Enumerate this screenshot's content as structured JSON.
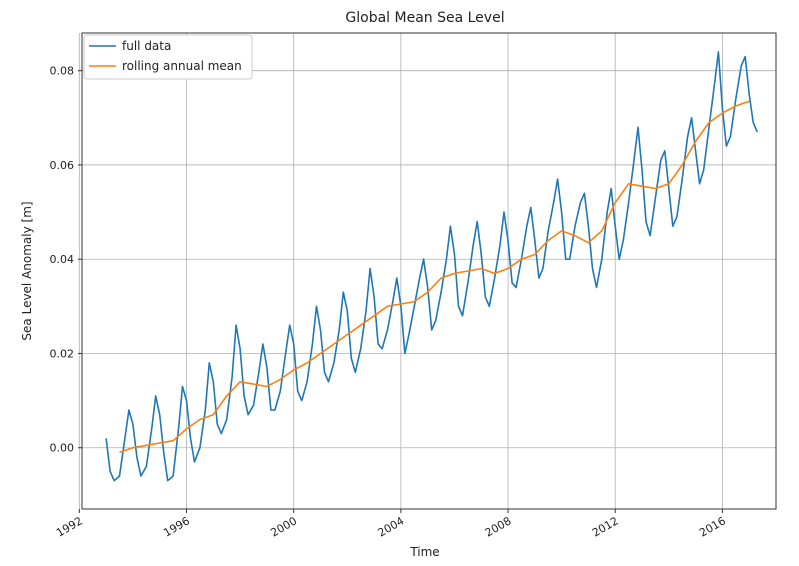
{
  "chart_data": {
    "type": "line",
    "title": "Global Mean Sea Level",
    "xlabel": "Time",
    "ylabel": "Sea Level Anomaly [m]",
    "xlim": [
      1992.1,
      2018.0
    ],
    "ylim": [
      -0.013,
      0.088
    ],
    "grid": true,
    "legend_position": "top-left",
    "x_ticks": [
      1992,
      1996,
      2000,
      2004,
      2008,
      2012,
      2016
    ],
    "x_tick_labels": [
      "1992",
      "1996",
      "2000",
      "2004",
      "2008",
      "2012",
      "2016"
    ],
    "y_ticks": [
      0.0,
      0.02,
      0.04,
      0.06,
      0.08
    ],
    "y_tick_labels": [
      "0.00",
      "0.02",
      "0.04",
      "0.06",
      "0.08"
    ],
    "series": [
      {
        "name": "full data",
        "color": "#1f77b4",
        "x": [
          1993.0,
          1993.15,
          1993.3,
          1993.5,
          1993.7,
          1993.85,
          1994.0,
          1994.15,
          1994.3,
          1994.5,
          1994.7,
          1994.85,
          1995.0,
          1995.15,
          1995.3,
          1995.5,
          1995.7,
          1995.85,
          1996.0,
          1996.15,
          1996.3,
          1996.5,
          1996.7,
          1996.85,
          1997.0,
          1997.15,
          1997.3,
          1997.5,
          1997.7,
          1997.85,
          1998.0,
          1998.15,
          1998.3,
          1998.5,
          1998.7,
          1998.85,
          1999.0,
          1999.15,
          1999.3,
          1999.5,
          1999.7,
          1999.85,
          2000.0,
          2000.15,
          2000.3,
          2000.5,
          2000.7,
          2000.85,
          2001.0,
          2001.15,
          2001.3,
          2001.5,
          2001.7,
          2001.85,
          2002.0,
          2002.15,
          2002.3,
          2002.5,
          2002.7,
          2002.85,
          2003.0,
          2003.15,
          2003.3,
          2003.5,
          2003.7,
          2003.85,
          2004.0,
          2004.15,
          2004.3,
          2004.5,
          2004.7,
          2004.85,
          2005.0,
          2005.15,
          2005.3,
          2005.5,
          2005.7,
          2005.85,
          2006.0,
          2006.15,
          2006.3,
          2006.5,
          2006.7,
          2006.85,
          2007.0,
          2007.15,
          2007.3,
          2007.5,
          2007.7,
          2007.85,
          2008.0,
          2008.15,
          2008.3,
          2008.5,
          2008.7,
          2008.85,
          2009.0,
          2009.15,
          2009.3,
          2009.5,
          2009.7,
          2009.85,
          2010.0,
          2010.15,
          2010.3,
          2010.5,
          2010.7,
          2010.85,
          2011.0,
          2011.15,
          2011.3,
          2011.5,
          2011.7,
          2011.85,
          2012.0,
          2012.15,
          2012.3,
          2012.5,
          2012.7,
          2012.85,
          2013.0,
          2013.15,
          2013.3,
          2013.5,
          2013.7,
          2013.85,
          2014.0,
          2014.15,
          2014.3,
          2014.5,
          2014.7,
          2014.85,
          2015.0,
          2015.15,
          2015.3,
          2015.5,
          2015.7,
          2015.85,
          2016.0,
          2016.15,
          2016.3,
          2016.5,
          2016.7,
          2016.85,
          2017.0,
          2017.15,
          2017.3
        ],
        "values": [
          0.002,
          -0.005,
          -0.007,
          -0.006,
          0.002,
          0.008,
          0.005,
          -0.002,
          -0.006,
          -0.004,
          0.004,
          0.011,
          0.007,
          -0.001,
          -0.007,
          -0.006,
          0.004,
          0.013,
          0.01,
          0.002,
          -0.003,
          0.0,
          0.008,
          0.018,
          0.014,
          0.005,
          0.003,
          0.006,
          0.015,
          0.026,
          0.021,
          0.011,
          0.007,
          0.009,
          0.016,
          0.022,
          0.017,
          0.008,
          0.008,
          0.012,
          0.02,
          0.026,
          0.022,
          0.012,
          0.01,
          0.014,
          0.022,
          0.03,
          0.025,
          0.016,
          0.014,
          0.018,
          0.025,
          0.033,
          0.029,
          0.019,
          0.016,
          0.021,
          0.029,
          0.038,
          0.032,
          0.022,
          0.021,
          0.025,
          0.031,
          0.036,
          0.03,
          0.02,
          0.024,
          0.03,
          0.036,
          0.04,
          0.034,
          0.025,
          0.027,
          0.033,
          0.04,
          0.047,
          0.041,
          0.03,
          0.028,
          0.035,
          0.043,
          0.048,
          0.041,
          0.032,
          0.03,
          0.036,
          0.043,
          0.05,
          0.044,
          0.035,
          0.034,
          0.04,
          0.047,
          0.051,
          0.044,
          0.036,
          0.038,
          0.046,
          0.052,
          0.057,
          0.05,
          0.04,
          0.04,
          0.047,
          0.052,
          0.054,
          0.047,
          0.038,
          0.034,
          0.04,
          0.05,
          0.055,
          0.047,
          0.04,
          0.044,
          0.052,
          0.061,
          0.068,
          0.059,
          0.048,
          0.045,
          0.053,
          0.061,
          0.063,
          0.055,
          0.047,
          0.049,
          0.057,
          0.066,
          0.07,
          0.063,
          0.056,
          0.059,
          0.068,
          0.077,
          0.084,
          0.072,
          0.064,
          0.066,
          0.074,
          0.081,
          0.083,
          0.075,
          0.069,
          0.067
        ]
      },
      {
        "name": "rolling annual mean",
        "color": "#ff7f0e",
        "x": [
          1993.5,
          1994.0,
          1994.5,
          1995.0,
          1995.5,
          1996.0,
          1996.5,
          1997.0,
          1997.5,
          1998.0,
          1998.5,
          1999.0,
          1999.5,
          2000.0,
          2000.5,
          2001.0,
          2001.5,
          2002.0,
          2002.5,
          2003.0,
          2003.5,
          2004.0,
          2004.5,
          2005.0,
          2005.5,
          2006.0,
          2006.5,
          2007.0,
          2007.5,
          2008.0,
          2008.5,
          2009.0,
          2009.5,
          2010.0,
          2010.5,
          2011.0,
          2011.5,
          2012.0,
          2012.5,
          2013.0,
          2013.5,
          2014.0,
          2014.5,
          2015.0,
          2015.5,
          2016.0,
          2016.5,
          2017.0
        ],
        "values": [
          -0.001,
          0.0,
          0.0005,
          0.001,
          0.0015,
          0.004,
          0.006,
          0.007,
          0.011,
          0.014,
          0.0135,
          0.013,
          0.0145,
          0.0165,
          0.018,
          0.02,
          0.022,
          0.024,
          0.026,
          0.028,
          0.03,
          0.0305,
          0.031,
          0.033,
          0.036,
          0.037,
          0.0375,
          0.038,
          0.037,
          0.038,
          0.04,
          0.041,
          0.044,
          0.046,
          0.045,
          0.0435,
          0.046,
          0.052,
          0.056,
          0.0555,
          0.055,
          0.056,
          0.06,
          0.065,
          0.069,
          0.071,
          0.0725,
          0.0735
        ]
      }
    ]
  }
}
